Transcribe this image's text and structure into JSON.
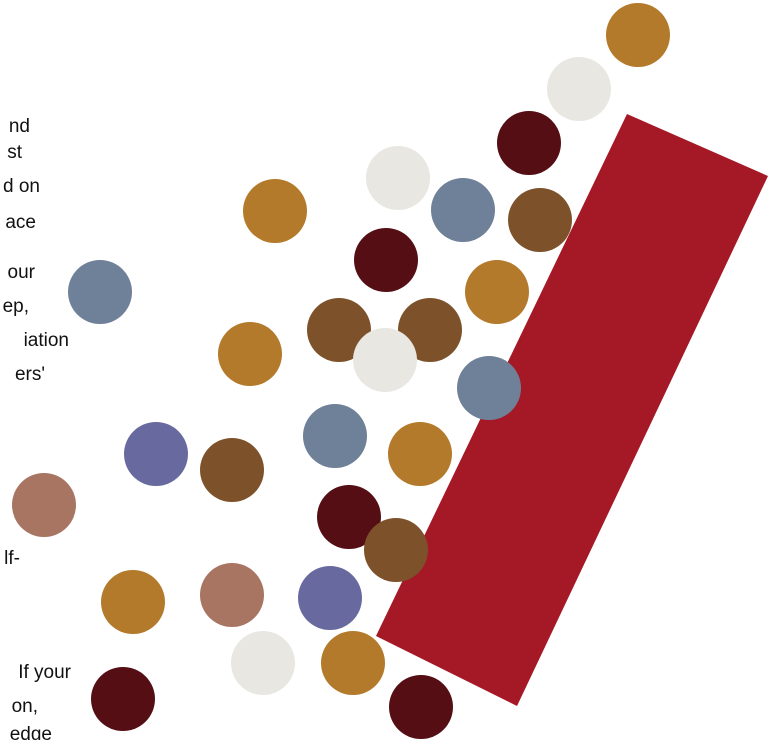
{
  "text_fragments": [
    "nd",
    "st",
    "d on",
    "ace",
    "our",
    "ep,",
    "iation",
    "ers'",
    "lf-",
    "If your",
    "on,",
    "edge"
  ],
  "colors": {
    "background": "#ffffff",
    "text": "#111111",
    "red_bar": "#a51826",
    "gold": "#b47a2b",
    "light_gray": "#e8e7e1",
    "dark_maroon": "#550f14",
    "slate_blue": "#6f8099",
    "brown": "#7d522b",
    "purple": "#686a9f",
    "dusty_rose": "#a97563"
  },
  "dots": [
    {
      "color": "gold"
    },
    {
      "color": "light_gray"
    },
    {
      "color": "dark_maroon"
    },
    {
      "color": "light_gray"
    },
    {
      "color": "gold"
    },
    {
      "color": "slate_blue"
    },
    {
      "color": "brown"
    },
    {
      "color": "dark_maroon"
    },
    {
      "color": "slate_blue"
    },
    {
      "color": "gold"
    },
    {
      "color": "brown"
    },
    {
      "color": "brown"
    },
    {
      "color": "gold"
    },
    {
      "color": "light_gray"
    },
    {
      "color": "slate_blue"
    },
    {
      "color": "slate_blue"
    },
    {
      "color": "gold"
    },
    {
      "color": "purple"
    },
    {
      "color": "brown"
    },
    {
      "color": "dusty_rose"
    },
    {
      "color": "dark_maroon"
    },
    {
      "color": "brown"
    },
    {
      "color": "gold"
    },
    {
      "color": "dusty_rose"
    },
    {
      "color": "purple"
    },
    {
      "color": "light_gray"
    },
    {
      "color": "gold"
    },
    {
      "color": "dark_maroon"
    },
    {
      "color": "dark_maroon"
    }
  ]
}
